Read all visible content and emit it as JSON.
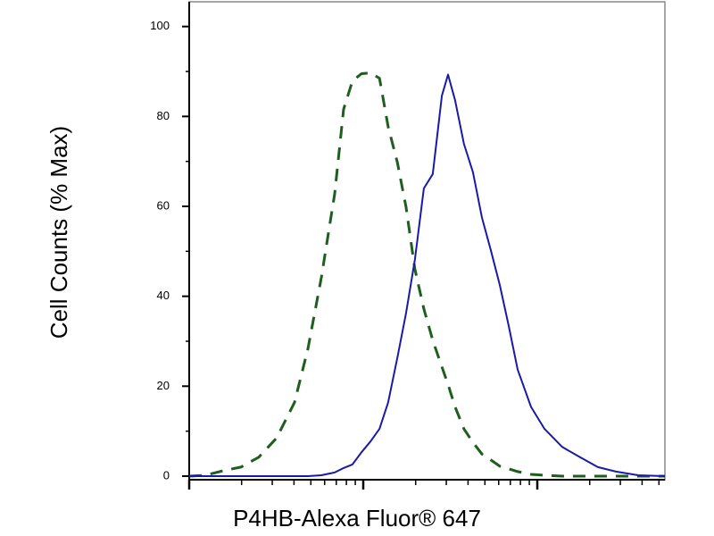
{
  "chart_data": {
    "type": "line",
    "x_label": "P4HB-Alexa Fluor® 647",
    "y_label": "Cell Counts (% Max)",
    "x": [
      1,
      1.24,
      1.57,
      1.98,
      2.51,
      3.18,
      4.03,
      4.81,
      5.74,
      6.85,
      7.71,
      8.67,
      9.77,
      11.0,
      12.4,
      13.9,
      15.7,
      17.6,
      19.8,
      22.3,
      25.1,
      28.3,
      30.7,
      33.7,
      37.9,
      42.7,
      48.1,
      54.1,
      60.9,
      68.5,
      77.1,
      92.1,
      110,
      139,
      176,
      223,
      283,
      380,
      541
    ],
    "series": [
      {
        "color": "#1e5e1e",
        "dashed": true,
        "values": [
          0,
          0.2,
          1.2,
          2.0,
          4.2,
          8.5,
          16.4,
          28.3,
          44.1,
          62.8,
          81.6,
          87.9,
          89.5,
          89.7,
          88.5,
          77.7,
          69.8,
          59.9,
          46.0,
          37.2,
          30.2,
          24.3,
          20.4,
          15.4,
          10.5,
          7.5,
          4.9,
          3.6,
          2.2,
          1.6,
          1.0,
          0.4,
          0.2,
          0,
          0,
          0,
          0,
          0,
          0
        ]
      },
      {
        "color": "#1a1aa8",
        "dashed": false,
        "values": [
          0,
          0,
          0,
          0,
          0,
          0,
          0,
          0,
          0.2,
          0.8,
          1.8,
          2.6,
          5.3,
          7.7,
          10.5,
          16.4,
          26.3,
          36.2,
          48.2,
          64.0,
          67.2,
          84.6,
          89.3,
          83.6,
          73.9,
          67.6,
          57.5,
          50.2,
          42.5,
          33.4,
          23.7,
          15.4,
          10.5,
          6.5,
          4.2,
          2.0,
          1.0,
          0.2,
          0
        ]
      }
    ],
    "xscale": "log",
    "xlim": [
      1,
      541
    ],
    "xticks": [
      1,
      10,
      100
    ],
    "xminor_ticks": [
      2,
      3,
      4,
      5,
      6,
      7,
      8,
      9,
      20,
      30,
      40,
      50,
      60,
      70,
      80,
      90,
      200,
      300,
      400,
      500
    ],
    "ylim": [
      -0.8,
      105.5
    ],
    "yticks": [
      0,
      20,
      40,
      60,
      80,
      100
    ],
    "yminor_ticks": [
      10,
      30,
      50,
      70,
      90
    ],
    "grid": false
  }
}
